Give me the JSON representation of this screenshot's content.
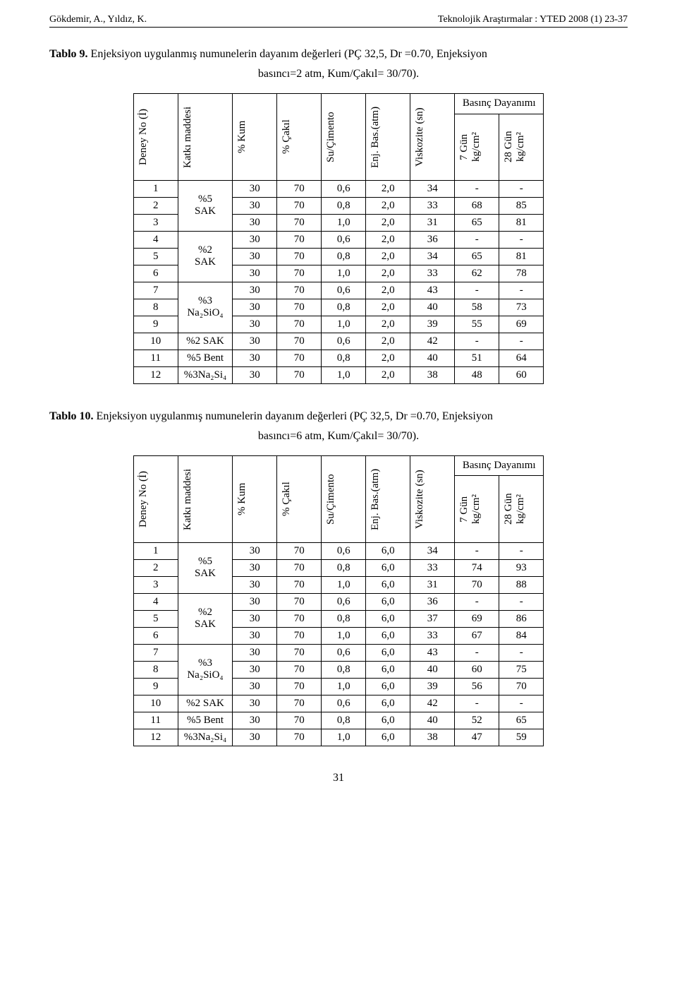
{
  "header": {
    "left": "Gökdemir, A., Yıldız, K.",
    "right": "Teknolojik Araştırmalar : YTED  2008 (1) 23-37"
  },
  "captions": {
    "t9_bold": "Tablo 9.",
    "t9_rest": " Enjeksiyon uygulanmış numunelerin dayanım değerleri (PÇ 32,5,  Dr =0.70, Enjeksiyon",
    "t9_line2": "basıncı=2 atm, Kum/Çakıl= 30/70).",
    "t10_bold": "Tablo 10.",
    "t10_rest": " Enjeksiyon uygulanmış numunelerin dayanım değerleri (PÇ 32,5,  Dr =0.70, Enjeksiyon",
    "t10_line2": "basıncı=6 atm, Kum/Çakıl= 30/70)."
  },
  "table_headers": {
    "deney": "Deney  No (İ)",
    "katki": "Katkı maddesi",
    "kum": "% Kum",
    "cakil": "% Çakıl",
    "su": "Su/Çimento",
    "enj": "Enj. Bas.(atm)",
    "visk": "Viskozite (sn)",
    "basinc": "Basınç Dayanımı",
    "g7": "7 Gün kg/cm²",
    "g28": "28 Gün kg/cm²"
  },
  "groups": [
    {
      "label": "%5 SAK",
      "count": 3
    },
    {
      "label": "%2 SAK",
      "count": 3
    },
    {
      "label": "%3 Na₂SiO₄",
      "count": 3
    },
    {
      "label_a": "%2 SAK",
      "label_b": "%5 Bent",
      "label_c": "%3Na₂Si₄",
      "count": 3
    }
  ],
  "table9": {
    "rows": [
      {
        "n": "1",
        "kum": "30",
        "cak": "70",
        "su": "0,6",
        "enj": "2,0",
        "vis": "34",
        "g7": "-",
        "g28": "-"
      },
      {
        "n": "2",
        "kum": "30",
        "cak": "70",
        "su": "0,8",
        "enj": "2,0",
        "vis": "33",
        "g7": "68",
        "g28": "85"
      },
      {
        "n": "3",
        "kum": "30",
        "cak": "70",
        "su": "1,0",
        "enj": "2,0",
        "vis": "31",
        "g7": "65",
        "g28": "81"
      },
      {
        "n": "4",
        "kum": "30",
        "cak": "70",
        "su": "0,6",
        "enj": "2,0",
        "vis": "36",
        "g7": "-",
        "g28": "-"
      },
      {
        "n": "5",
        "kum": "30",
        "cak": "70",
        "su": "0,8",
        "enj": "2,0",
        "vis": "34",
        "g7": "65",
        "g28": "81"
      },
      {
        "n": "6",
        "kum": "30",
        "cak": "70",
        "su": "1,0",
        "enj": "2,0",
        "vis": "33",
        "g7": "62",
        "g28": "78"
      },
      {
        "n": "7",
        "kum": "30",
        "cak": "70",
        "su": "0,6",
        "enj": "2,0",
        "vis": "43",
        "g7": "-",
        "g28": "-"
      },
      {
        "n": "8",
        "kum": "30",
        "cak": "70",
        "su": "0,8",
        "enj": "2,0",
        "vis": "40",
        "g7": "58",
        "g28": "73"
      },
      {
        "n": "9",
        "kum": "30",
        "cak": "70",
        "su": "1,0",
        "enj": "2,0",
        "vis": "39",
        "g7": "55",
        "g28": "69"
      },
      {
        "n": "10",
        "kum": "30",
        "cak": "70",
        "su": "0,6",
        "enj": "2,0",
        "vis": "42",
        "g7": "-",
        "g28": "-"
      },
      {
        "n": "11",
        "kum": "30",
        "cak": "70",
        "su": "0,8",
        "enj": "2,0",
        "vis": "40",
        "g7": "51",
        "g28": "64"
      },
      {
        "n": "12",
        "kum": "30",
        "cak": "70",
        "su": "1,0",
        "enj": "2,0",
        "vis": "38",
        "g7": "48",
        "g28": "60"
      }
    ]
  },
  "table10": {
    "rows": [
      {
        "n": "1",
        "kum": "30",
        "cak": "70",
        "su": "0,6",
        "enj": "6,0",
        "vis": "34",
        "g7": "-",
        "g28": "-"
      },
      {
        "n": "2",
        "kum": "30",
        "cak": "70",
        "su": "0,8",
        "enj": "6,0",
        "vis": "33",
        "g7": "74",
        "g28": "93"
      },
      {
        "n": "3",
        "kum": "30",
        "cak": "70",
        "su": "1,0",
        "enj": "6,0",
        "vis": "31",
        "g7": "70",
        "g28": "88"
      },
      {
        "n": "4",
        "kum": "30",
        "cak": "70",
        "su": "0,6",
        "enj": "6,0",
        "vis": "36",
        "g7": "-",
        "g28": "-"
      },
      {
        "n": "5",
        "kum": "30",
        "cak": "70",
        "su": "0,8",
        "enj": "6,0",
        "vis": "37",
        "g7": "69",
        "g28": "86"
      },
      {
        "n": "6",
        "kum": "30",
        "cak": "70",
        "su": "1,0",
        "enj": "6,0",
        "vis": "33",
        "g7": "67",
        "g28": "84"
      },
      {
        "n": "7",
        "kum": "30",
        "cak": "70",
        "su": "0,6",
        "enj": "6,0",
        "vis": "43",
        "g7": "-",
        "g28": "-"
      },
      {
        "n": "8",
        "kum": "30",
        "cak": "70",
        "su": "0,8",
        "enj": "6,0",
        "vis": "40",
        "g7": "60",
        "g28": "75"
      },
      {
        "n": "9",
        "kum": "30",
        "cak": "70",
        "su": "1,0",
        "enj": "6,0",
        "vis": "39",
        "g7": "56",
        "g28": "70"
      },
      {
        "n": "10",
        "kum": "30",
        "cak": "70",
        "su": "0,6",
        "enj": "6,0",
        "vis": "42",
        "g7": "-",
        "g28": "-"
      },
      {
        "n": "11",
        "kum": "30",
        "cak": "70",
        "su": "0,8",
        "enj": "6,0",
        "vis": "40",
        "g7": "52",
        "g28": "65"
      },
      {
        "n": "12",
        "kum": "30",
        "cak": "70",
        "su": "1,0",
        "enj": "6,0",
        "vis": "38",
        "g7": "47",
        "g28": "59"
      }
    ]
  },
  "group_labels": {
    "g1": "%5\nSAK",
    "g2": "%2\nSAK",
    "g3": "%3\nNa₂SiO₄",
    "g4a": "%2 SAK",
    "g4b": "%5 Bent",
    "g4c": "%3Na₂Si₄"
  },
  "page_number": "31"
}
